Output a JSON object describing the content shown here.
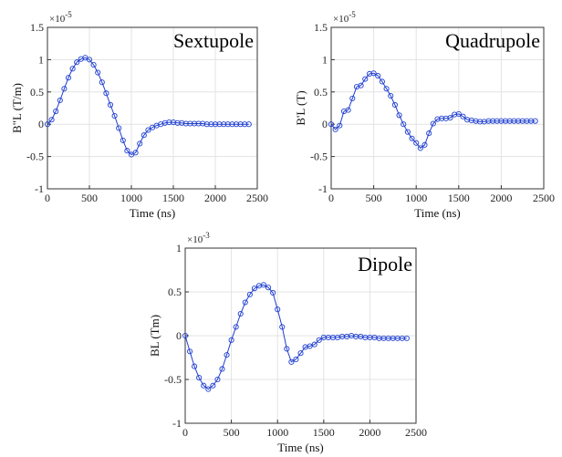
{
  "chart_data": [
    {
      "type": "line",
      "title": "Sextupole",
      "xlabel": "Time (ns)",
      "ylabel": "B\"L (T/m)",
      "multiplier": "×10",
      "multiplier_exp": "-5",
      "xlim": [
        0,
        2500
      ],
      "ylim": [
        -1,
        1.5
      ],
      "xticks": [
        0,
        500,
        1000,
        1500,
        2000,
        2500
      ],
      "yticks": [
        -1,
        -0.5,
        0,
        0.5,
        1,
        1.5
      ],
      "xtick_labels": [
        "0",
        "500",
        "1000",
        "1500",
        "2000",
        "2500"
      ],
      "ytick_labels": [
        "-1",
        "-0.5",
        "0",
        "0.5",
        "1",
        "1.5"
      ],
      "grid": true,
      "series": [
        {
          "color": "#1f3fd0",
          "marker": "circle",
          "x": [
            0,
            50,
            100,
            150,
            200,
            250,
            300,
            350,
            400,
            450,
            500,
            550,
            600,
            650,
            700,
            750,
            800,
            850,
            900,
            950,
            1000,
            1050,
            1100,
            1150,
            1200,
            1250,
            1300,
            1350,
            1400,
            1450,
            1500,
            1550,
            1600,
            1650,
            1700,
            1750,
            1800,
            1850,
            1900,
            1950,
            2000,
            2050,
            2100,
            2150,
            2200,
            2250,
            2300,
            2350,
            2400
          ],
          "y": [
            0,
            0.07,
            0.2,
            0.37,
            0.55,
            0.72,
            0.86,
            0.96,
            1.01,
            1.03,
            1.0,
            0.92,
            0.8,
            0.65,
            0.48,
            0.3,
            0.13,
            -0.06,
            -0.25,
            -0.41,
            -0.47,
            -0.44,
            -0.3,
            -0.17,
            -0.09,
            -0.05,
            -0.02,
            0.0,
            0.02,
            0.03,
            0.03,
            0.02,
            0.02,
            0.01,
            0.01,
            0.01,
            0.01,
            0.01,
            0.0,
            0.0,
            0.0,
            0.0,
            0.0,
            0.0,
            0.0,
            0.0,
            0.0,
            0.0,
            0.0
          ]
        }
      ]
    },
    {
      "type": "line",
      "title": "Quadrupole",
      "xlabel": "Time (ns)",
      "ylabel": "B'L (T)",
      "multiplier": "×10",
      "multiplier_exp": "-5",
      "xlim": [
        0,
        2500
      ],
      "ylim": [
        -1,
        1.5
      ],
      "xticks": [
        0,
        500,
        1000,
        1500,
        2000,
        2500
      ],
      "yticks": [
        -1,
        -0.5,
        0,
        0.5,
        1,
        1.5
      ],
      "xtick_labels": [
        "0",
        "500",
        "1000",
        "1500",
        "2000",
        "2500"
      ],
      "ytick_labels": [
        "-1",
        "-0.5",
        "0",
        "0.5",
        "1",
        "1.5"
      ],
      "grid": true,
      "series": [
        {
          "color": "#1f3fd0",
          "marker": "circle",
          "x": [
            0,
            50,
            100,
            150,
            200,
            250,
            300,
            350,
            400,
            450,
            500,
            550,
            600,
            650,
            700,
            750,
            800,
            850,
            900,
            950,
            1000,
            1050,
            1100,
            1150,
            1200,
            1250,
            1300,
            1350,
            1400,
            1450,
            1500,
            1550,
            1600,
            1650,
            1700,
            1750,
            1800,
            1850,
            1900,
            1950,
            2000,
            2050,
            2100,
            2150,
            2200,
            2250,
            2300,
            2350,
            2400
          ],
          "y": [
            0,
            -0.08,
            -0.02,
            0.2,
            0.22,
            0.4,
            0.58,
            0.6,
            0.7,
            0.78,
            0.79,
            0.75,
            0.66,
            0.55,
            0.44,
            0.3,
            0.14,
            0.0,
            -0.12,
            -0.22,
            -0.29,
            -0.37,
            -0.32,
            -0.14,
            0.01,
            0.08,
            0.09,
            0.09,
            0.1,
            0.15,
            0.16,
            0.12,
            0.07,
            0.06,
            0.05,
            0.04,
            0.04,
            0.05,
            0.05,
            0.05,
            0.05,
            0.05,
            0.05,
            0.05,
            0.05,
            0.05,
            0.05,
            0.05,
            0.05
          ]
        }
      ]
    },
    {
      "type": "line",
      "title": "Dipole",
      "xlabel": "Time (ns)",
      "ylabel": "BL (Tm)",
      "multiplier": "×10",
      "multiplier_exp": "-3",
      "xlim": [
        0,
        2500
      ],
      "ylim": [
        -1,
        1
      ],
      "xticks": [
        0,
        500,
        1000,
        1500,
        2000,
        2500
      ],
      "yticks": [
        -1,
        -0.5,
        0,
        0.5,
        1
      ],
      "xtick_labels": [
        "0",
        "500",
        "1000",
        "1500",
        "2000",
        "2500"
      ],
      "ytick_labels": [
        "-1",
        "-0.5",
        "0",
        "0.5",
        "1"
      ],
      "grid": true,
      "series": [
        {
          "color": "#1f3fd0",
          "marker": "circle",
          "x": [
            0,
            50,
            100,
            150,
            200,
            250,
            300,
            350,
            400,
            450,
            500,
            550,
            600,
            650,
            700,
            750,
            800,
            850,
            900,
            950,
            1000,
            1050,
            1100,
            1150,
            1200,
            1250,
            1300,
            1350,
            1400,
            1450,
            1500,
            1550,
            1600,
            1650,
            1700,
            1750,
            1800,
            1850,
            1900,
            1950,
            2000,
            2050,
            2100,
            2150,
            2200,
            2250,
            2300,
            2350,
            2400
          ],
          "y": [
            0,
            -0.18,
            -0.35,
            -0.48,
            -0.57,
            -0.61,
            -0.57,
            -0.5,
            -0.38,
            -0.22,
            -0.05,
            0.1,
            0.25,
            0.38,
            0.47,
            0.54,
            0.57,
            0.58,
            0.55,
            0.49,
            0.3,
            0.1,
            -0.15,
            -0.3,
            -0.27,
            -0.2,
            -0.13,
            -0.12,
            -0.1,
            -0.05,
            -0.02,
            -0.02,
            -0.02,
            -0.02,
            -0.01,
            -0.01,
            0.0,
            -0.01,
            -0.01,
            -0.02,
            -0.02,
            -0.02,
            -0.03,
            -0.03,
            -0.03,
            -0.03,
            -0.03,
            -0.03,
            -0.03
          ]
        }
      ]
    }
  ]
}
